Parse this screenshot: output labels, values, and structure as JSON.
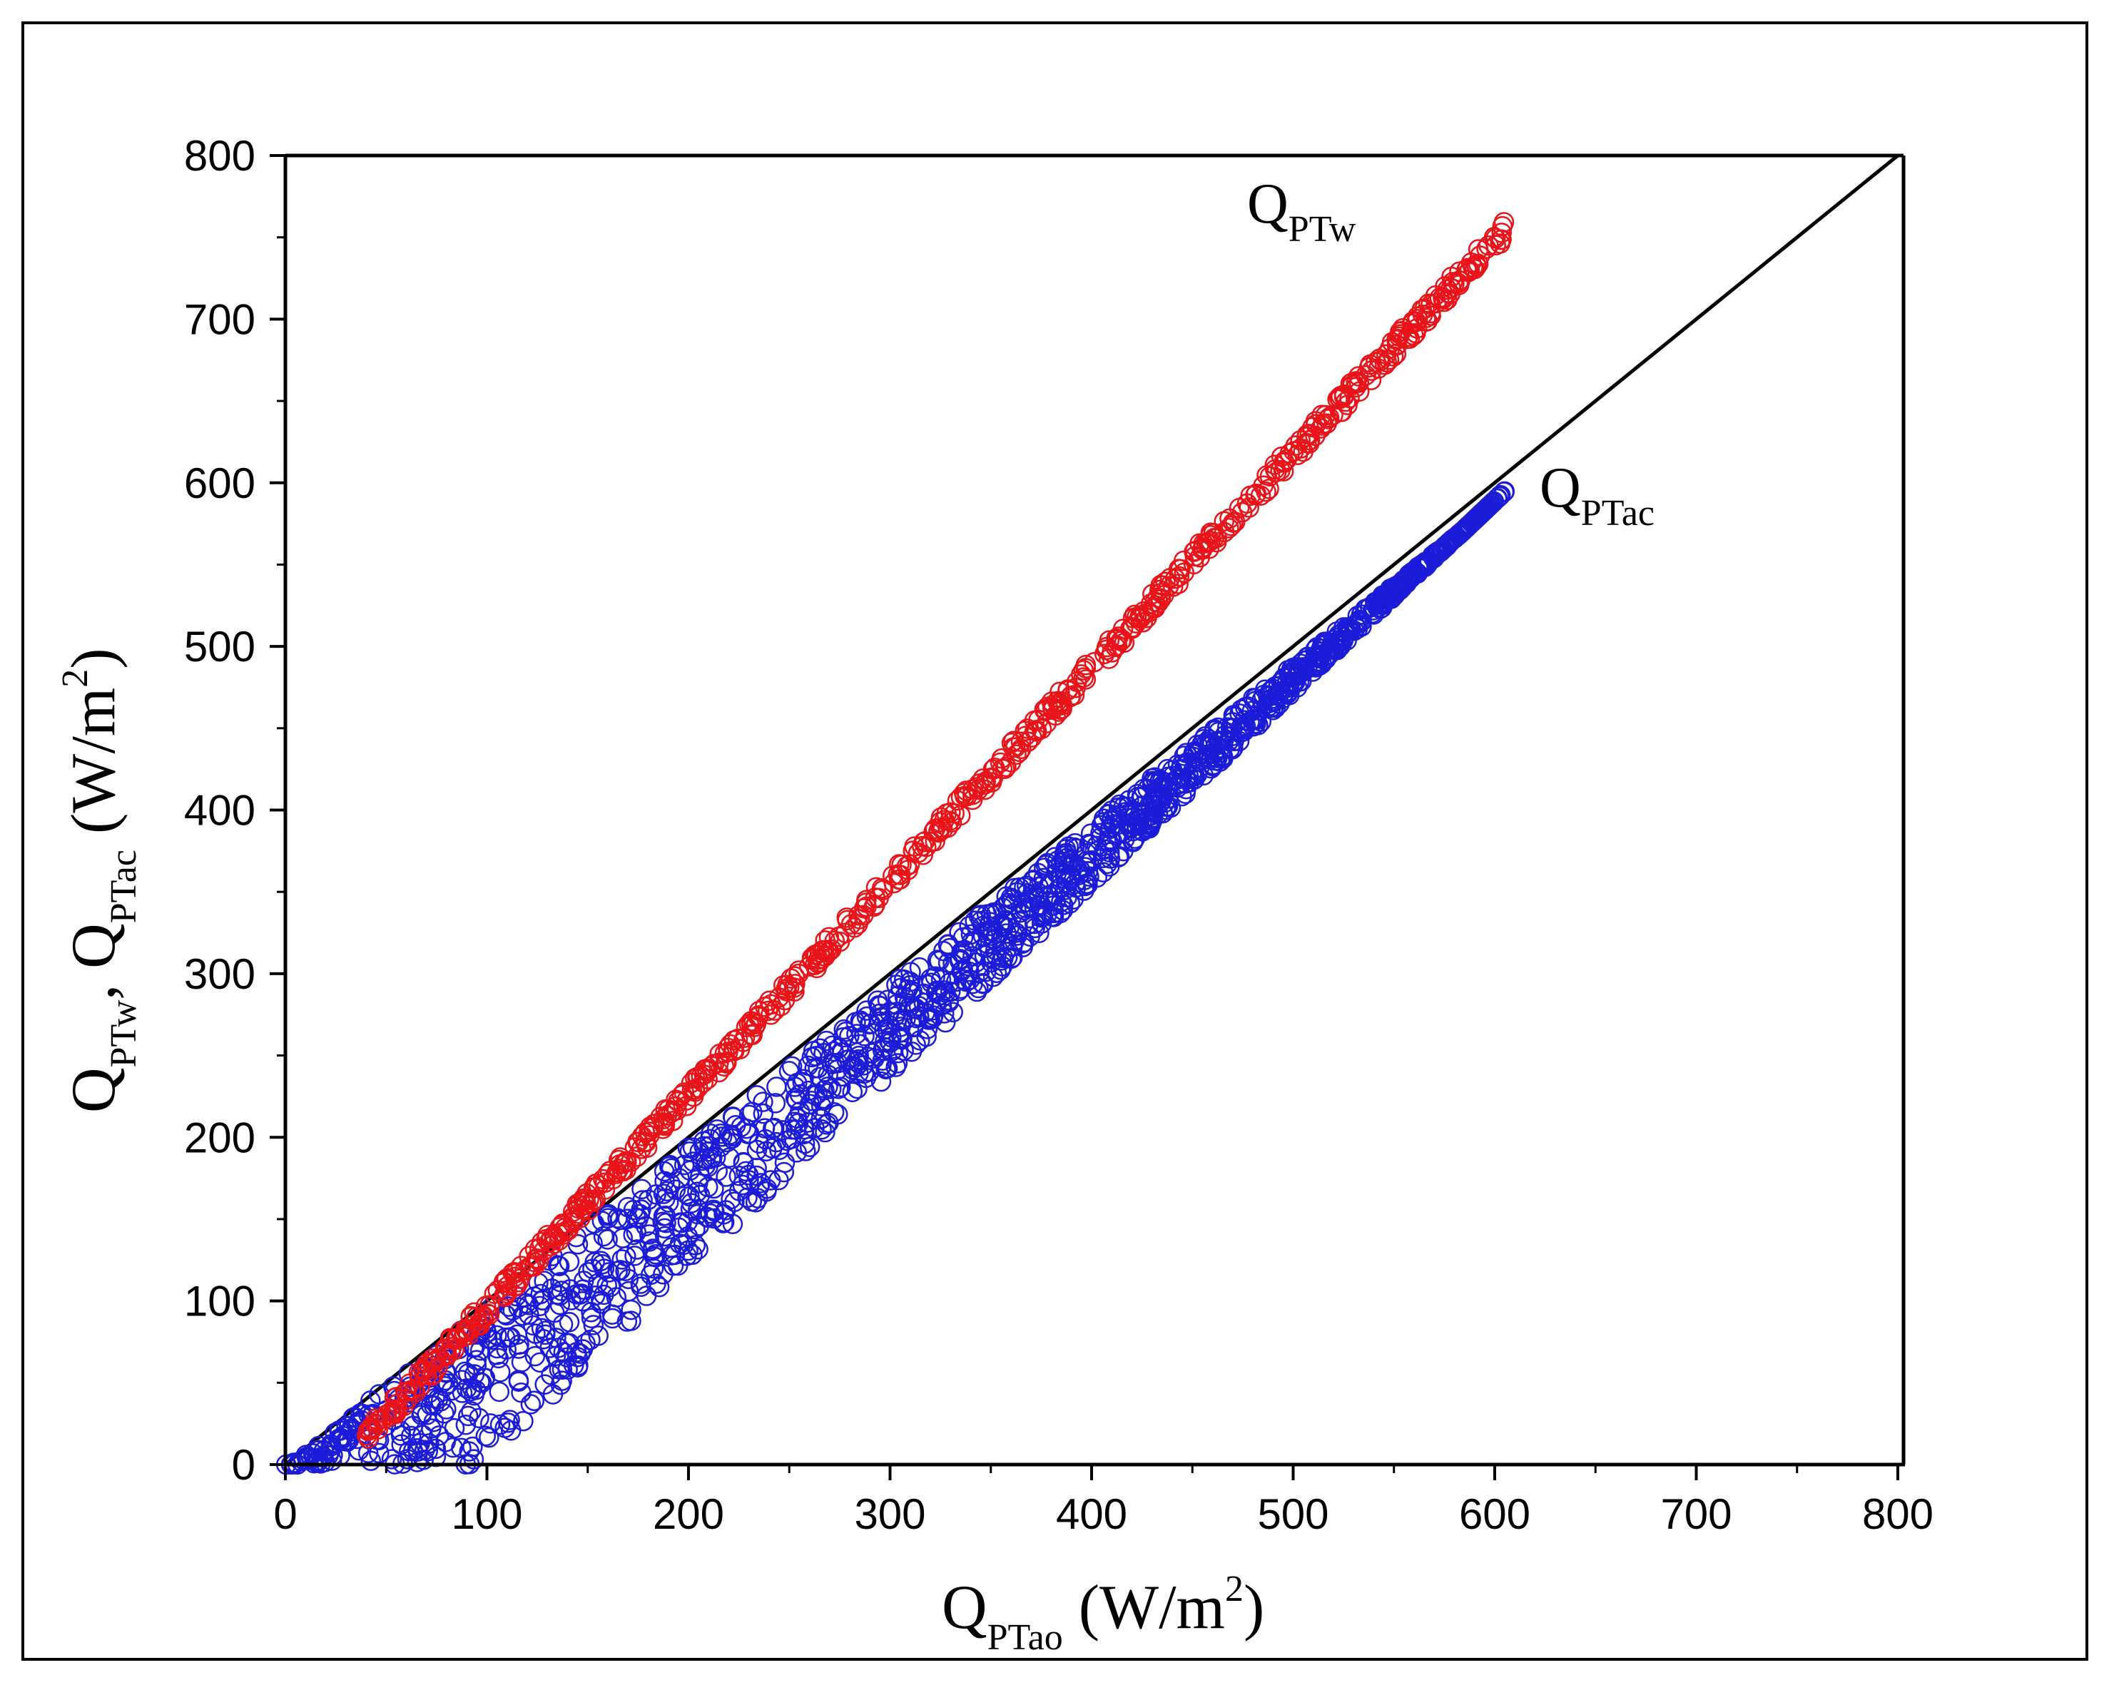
{
  "chart_data": {
    "type": "scatter",
    "xlabel": {
      "main": "Q",
      "sub": "PTao",
      "unit_pre": " (W/m",
      "sup": "2",
      "unit_post": ")"
    },
    "ylabel": {
      "q1": "Q",
      "s1": "PTw",
      "sep": ", ",
      "q2": "Q",
      "s2": "PTac",
      "unit_pre": "  (W/m",
      "sup": "2",
      "unit_post": ")"
    },
    "xlim": [
      0,
      800
    ],
    "ylim": [
      0,
      800
    ],
    "xticks": [
      0,
      100,
      200,
      300,
      400,
      500,
      600,
      700,
      800
    ],
    "yticks": [
      0,
      100,
      200,
      300,
      400,
      500,
      600,
      700,
      800
    ],
    "grid": false,
    "marker": "open-circle",
    "reference_line": {
      "from": [
        0,
        0
      ],
      "to": [
        800,
        800
      ],
      "color": "#000000"
    },
    "series": [
      {
        "label_main": "Q",
        "label_sub": "PTw",
        "color": "#e8141a",
        "trend": {
          "x_start": 40,
          "x_end": 605,
          "slope": 1.305,
          "intercept": -35,
          "spread": 6
        }
      },
      {
        "label_main": "Q",
        "label_sub": "PTac",
        "color": "#1c1cd8",
        "trend": {
          "x_start": 0,
          "x_end": 605,
          "upper_slope": 0.98,
          "upper_intercept": 0,
          "lower_slope": 1.17,
          "lower_intercept": -113
        }
      }
    ]
  }
}
